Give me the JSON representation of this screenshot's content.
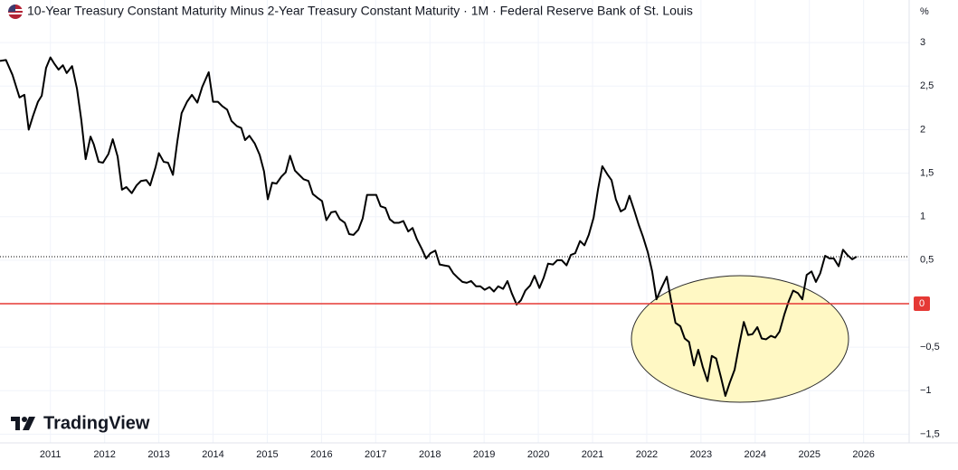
{
  "chart_data": {
    "type": "line",
    "title": "10-Year Treasury Constant Maturity Minus 2-Year Treasury Constant Maturity · 1M · Federal Reserve Bank of St. Louis",
    "unit_label": "%",
    "brand": "TradingView",
    "color": "#000000",
    "zero_line_color": "#e53935",
    "grid": true,
    "xlim": [
      2010.07,
      2026.84
    ],
    "ylim": [
      -1.6,
      3.49
    ],
    "xticks": [
      2011,
      2012,
      2013,
      2014,
      2015,
      2016,
      2017,
      2018,
      2019,
      2020,
      2021,
      2022,
      2023,
      2024,
      2025,
      2026
    ],
    "yticks": [
      {
        "value": -1.5,
        "label": "−1,5"
      },
      {
        "value": -1,
        "label": "−1"
      },
      {
        "value": -0.5,
        "label": "−0,5"
      },
      0,
      {
        "value": 0.5,
        "label": "0,5"
      },
      1,
      {
        "value": 1.5,
        "label": "1,5"
      },
      2,
      {
        "value": 2.5,
        "label": "2,5"
      },
      3
    ],
    "x": [
      2010.07,
      2010.18,
      2010.3,
      2010.43,
      2010.52,
      2010.6,
      2010.68,
      2010.77,
      2010.84,
      2010.92,
      2011.0,
      2011.07,
      2011.15,
      2011.23,
      2011.3,
      2011.4,
      2011.49,
      2011.57,
      2011.65,
      2011.74,
      2011.8,
      2011.89,
      2011.97,
      2012.07,
      2012.15,
      2012.24,
      2012.32,
      2012.4,
      2012.5,
      2012.59,
      2012.67,
      2012.77,
      2012.84,
      2012.94,
      2013.0,
      2013.09,
      2013.17,
      2013.26,
      2013.34,
      2013.42,
      2013.52,
      2013.61,
      2013.71,
      2013.8,
      2013.92,
      2014.0,
      2014.09,
      2014.17,
      2014.26,
      2014.34,
      2014.44,
      2014.52,
      2014.59,
      2014.67,
      2014.77,
      2014.86,
      2014.94,
      2015.01,
      2015.09,
      2015.17,
      2015.26,
      2015.34,
      2015.42,
      2015.51,
      2015.59,
      2015.67,
      2015.76,
      2015.84,
      2015.92,
      2016.01,
      2016.09,
      2016.18,
      2016.26,
      2016.34,
      2016.43,
      2016.51,
      2016.59,
      2016.68,
      2016.76,
      2016.84,
      2016.93,
      2017.01,
      2017.09,
      2017.18,
      2017.26,
      2017.34,
      2017.43,
      2017.51,
      2017.6,
      2017.68,
      2017.76,
      2017.85,
      2017.93,
      2018.01,
      2018.1,
      2018.18,
      2018.26,
      2018.35,
      2018.43,
      2018.51,
      2018.6,
      2018.68,
      2018.76,
      2018.85,
      2018.93,
      2019.01,
      2019.1,
      2019.18,
      2019.26,
      2019.35,
      2019.43,
      2019.51,
      2019.6,
      2019.68,
      2019.76,
      2019.85,
      2019.93,
      2020.02,
      2020.1,
      2020.18,
      2020.27,
      2020.35,
      2020.43,
      2020.52,
      2020.6,
      2020.68,
      2020.77,
      2020.85,
      2020.93,
      2021.02,
      2021.1,
      2021.18,
      2021.27,
      2021.35,
      2021.43,
      2021.52,
      2021.6,
      2021.68,
      2021.77,
      2021.85,
      2021.93,
      2022.02,
      2022.1,
      2022.18,
      2022.27,
      2022.37,
      2022.45,
      2022.53,
      2022.62,
      2022.7,
      2022.78,
      2022.87,
      2022.95,
      2023.03,
      2023.12,
      2023.2,
      2023.28,
      2023.37,
      2023.45,
      2023.53,
      2023.62,
      2023.7,
      2023.79,
      2023.87,
      2023.95,
      2024.04,
      2024.12,
      2024.2,
      2024.29,
      2024.37,
      2024.45,
      2024.54,
      2024.62,
      2024.7,
      2024.79,
      2024.87,
      2024.95,
      2025.04,
      2025.12,
      2025.2,
      2025.29,
      2025.37,
      2025.45,
      2025.54,
      2025.62,
      2025.7,
      2025.79,
      2025.87
    ],
    "values": [
      2.79,
      2.8,
      2.63,
      2.37,
      2.4,
      2.0,
      2.16,
      2.32,
      2.39,
      2.71,
      2.83,
      2.76,
      2.69,
      2.74,
      2.65,
      2.73,
      2.47,
      2.11,
      1.66,
      1.92,
      1.83,
      1.63,
      1.62,
      1.72,
      1.89,
      1.69,
      1.31,
      1.34,
      1.27,
      1.36,
      1.41,
      1.42,
      1.36,
      1.57,
      1.73,
      1.63,
      1.62,
      1.48,
      1.86,
      2.19,
      2.32,
      2.4,
      2.31,
      2.49,
      2.66,
      2.32,
      2.32,
      2.27,
      2.23,
      2.1,
      2.04,
      2.02,
      1.88,
      1.93,
      1.84,
      1.71,
      1.52,
      1.2,
      1.39,
      1.38,
      1.46,
      1.51,
      1.7,
      1.53,
      1.48,
      1.43,
      1.41,
      1.26,
      1.22,
      1.18,
      0.96,
      1.05,
      1.06,
      0.97,
      0.93,
      0.8,
      0.79,
      0.85,
      0.98,
      1.25,
      1.25,
      1.25,
      1.12,
      1.1,
      0.97,
      0.93,
      0.93,
      0.95,
      0.83,
      0.87,
      0.74,
      0.63,
      0.52,
      0.58,
      0.61,
      0.45,
      0.44,
      0.43,
      0.35,
      0.3,
      0.25,
      0.24,
      0.26,
      0.2,
      0.2,
      0.16,
      0.19,
      0.14,
      0.2,
      0.17,
      0.26,
      0.12,
      -0.01,
      0.04,
      0.15,
      0.21,
      0.32,
      0.18,
      0.3,
      0.46,
      0.45,
      0.5,
      0.5,
      0.44,
      0.56,
      0.58,
      0.72,
      0.67,
      0.79,
      0.99,
      1.31,
      1.58,
      1.49,
      1.42,
      1.2,
      1.06,
      1.09,
      1.24,
      1.07,
      0.91,
      0.77,
      0.59,
      0.37,
      0.05,
      0.18,
      0.31,
      0.03,
      -0.22,
      -0.26,
      -0.4,
      -0.44,
      -0.71,
      -0.53,
      -0.72,
      -0.89,
      -0.6,
      -0.63,
      -0.85,
      -1.06,
      -0.91,
      -0.76,
      -0.49,
      -0.21,
      -0.36,
      -0.35,
      -0.27,
      -0.4,
      -0.41,
      -0.37,
      -0.39,
      -0.32,
      -0.12,
      0.03,
      0.15,
      0.12,
      0.05,
      0.33,
      0.37,
      0.25,
      0.35,
      0.55,
      0.52,
      0.52,
      0.43,
      0.62,
      0.56,
      0.51,
      0.54
    ]
  }
}
